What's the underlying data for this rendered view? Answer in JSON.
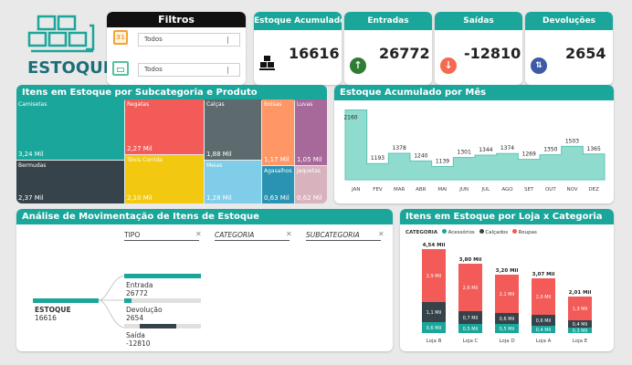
{
  "logo": {
    "label": "ESTOQUE"
  },
  "filtros": {
    "title": "Filtros",
    "date_filter": {
      "value": "Todos",
      "icon": "calendar-icon"
    },
    "store_filter": {
      "value": "Todos",
      "icon": "store-icon"
    }
  },
  "kpis": [
    {
      "title": "Estoque Acumulado",
      "value": "16616",
      "icon": "boxes-icon"
    },
    {
      "title": "Entradas",
      "value": "26772",
      "icon": "arrow-up-icon",
      "color": "#2e7d32"
    },
    {
      "title": "Saídas",
      "value": "-12810",
      "icon": "arrow-down-icon",
      "color": "#f46a50"
    },
    {
      "title": "Devoluções",
      "value": "2654",
      "icon": "swap-icon",
      "color": "#3d5aa8"
    }
  ],
  "treemap": {
    "title": "Itens em Estoque por Subcategoria e Produto",
    "cells": [
      {
        "label": "Camisetas",
        "value": "3,24 Mil",
        "color": "#1aa69a"
      },
      {
        "label": "Bermudas",
        "value": "2,37 Mil",
        "color": "#37434a"
      },
      {
        "label": "Regatas",
        "value": "2,27 Mil",
        "color": "#f25b58"
      },
      {
        "label": "Tênis Corrida",
        "value": "2,10 Mil",
        "color": "#f2c811"
      },
      {
        "label": "Calças",
        "value": "1,88 Mil",
        "color": "#5e6b6e"
      },
      {
        "label": "Meias",
        "value": "1,28 Mil",
        "color": "#7fcde8"
      },
      {
        "label": "Bolsas",
        "value": "1,17 Mil",
        "color": "#fe9666"
      },
      {
        "label": "Agasalhos",
        "value": "0,63 Mil",
        "color": "#2a92b3"
      },
      {
        "label": "Luvas",
        "value": "1,05 Mil",
        "color": "#a66999"
      },
      {
        "label": "Jaquetas",
        "value": "0,62 Mil",
        "color": "#d8b3bd"
      }
    ]
  },
  "monthly": {
    "title": "Estoque Acumulado por Mês"
  },
  "decomp": {
    "title": "Análise de Movimentação de Itens de Estoque",
    "filters": [
      "TIPO",
      "CATEGORIA",
      "SUBCATEGORIA"
    ],
    "root": {
      "label": "ESTOQUE",
      "value": "16616"
    },
    "nodes": [
      {
        "label": "Entrada",
        "value": "26772"
      },
      {
        "label": "Devolução",
        "value": "2654"
      },
      {
        "label": "Saída",
        "value": "-12810"
      }
    ]
  },
  "loja": {
    "title": "Itens em Estoque por Loja x Categoria",
    "legend_title": "CATEGORIA",
    "legend": [
      {
        "name": "Acessórios",
        "color": "#1aa69a"
      },
      {
        "name": "Calçados",
        "color": "#37434a"
      },
      {
        "name": "Roupas",
        "color": "#f25b58"
      }
    ]
  },
  "chart_data": [
    {
      "type": "area",
      "title": "Estoque Acumulado por Mês",
      "categories": [
        "JAN",
        "FEV",
        "MAR",
        "ABR",
        "MAI",
        "JUN",
        "JUL",
        "AGO",
        "SET",
        "OUT",
        "NOV",
        "DEZ"
      ],
      "values": [
        2160,
        1193,
        1378,
        1240,
        1139,
        1301,
        1344,
        1374,
        1269,
        1350,
        1503,
        1365
      ],
      "ylim": [
        900,
        2250
      ]
    },
    {
      "type": "bar",
      "stacked": true,
      "title": "Itens em Estoque por Loja x Categoria",
      "categories": [
        "Loja B",
        "Loja C",
        "Loja D",
        "Loja A",
        "Loja E"
      ],
      "totals": [
        "4,54 Mil",
        "3,80 Mil",
        "3,20 Mil",
        "3,07 Mil",
        "2,01 Mil"
      ],
      "series": [
        {
          "name": "Acessórios",
          "values": [
            0.6,
            0.5,
            0.5,
            0.4,
            0.3
          ],
          "labels": [
            "0,6 Mil",
            "0,5 Mil",
            "0,5 Mil",
            "0,4 Mil",
            "0,3 Mil"
          ]
        },
        {
          "name": "Calçados",
          "values": [
            1.1,
            0.7,
            0.6,
            0.6,
            0.4
          ],
          "labels": [
            "1,1 Mil",
            "0,7 Mil",
            "0,6 Mil",
            "0,6 Mil",
            "0,4 Mil"
          ]
        },
        {
          "name": "Roupas",
          "values": [
            2.9,
            2.6,
            2.1,
            2.0,
            1.3
          ],
          "labels": [
            "2,9 Mil",
            "2,6 Mil",
            "2,1 Mil",
            "2,0 Mil",
            "1,3 Mil"
          ]
        }
      ]
    }
  ]
}
